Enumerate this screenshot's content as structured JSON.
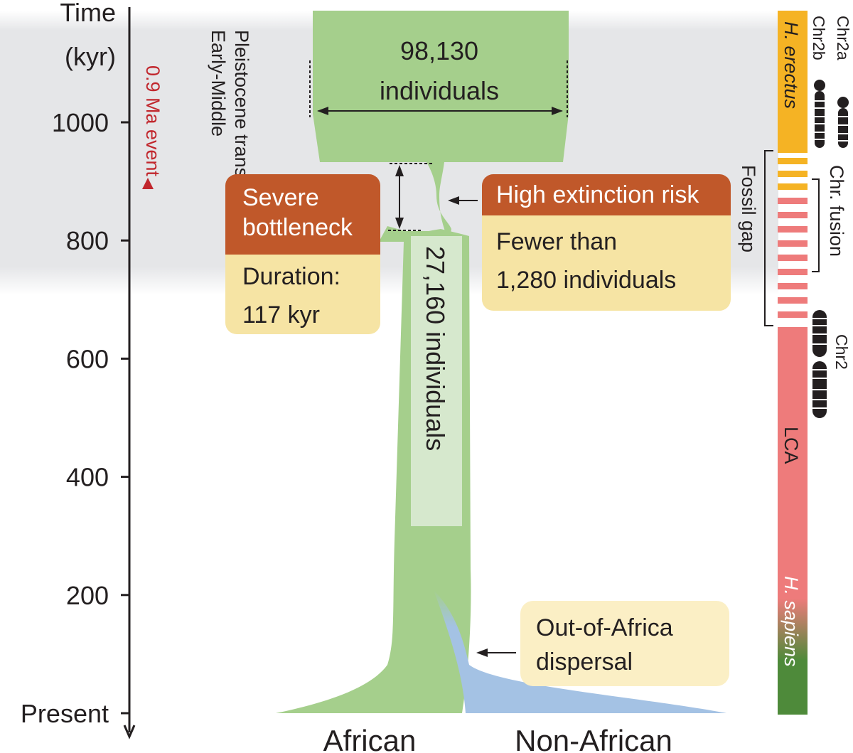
{
  "axis": {
    "title_line1": "Time",
    "title_line2": "(kyr)",
    "ticks": [
      {
        "label": "1000",
        "value": 1000
      },
      {
        "label": "800",
        "value": 800
      },
      {
        "label": "600",
        "value": 600
      },
      {
        "label": "400",
        "value": 400
      },
      {
        "label": "200",
        "value": 200
      },
      {
        "label": "Present",
        "value": 0
      }
    ]
  },
  "transition": {
    "line1": "Early-Middle",
    "line2": "Pleistocene transition"
  },
  "event": {
    "label": "0.9 Ma event",
    "color": "#c1272d"
  },
  "ancestral_population": {
    "count": "98,130",
    "unit": "individuals"
  },
  "post_bottleneck_population": {
    "label": "27,160 individuals"
  },
  "bottleneck_box": {
    "title_line1": "Severe",
    "title_line2": "bottleneck",
    "body_line1": "Duration:",
    "body_line2": "117 kyr"
  },
  "risk_box": {
    "title": "High extinction risk",
    "body_line1": "Fewer than",
    "body_line2": "1,280 individuals"
  },
  "dispersal_box": {
    "line1": "Out-of-Africa",
    "line2": "dispersal"
  },
  "populations": {
    "african": "African",
    "non_african": "Non-African"
  },
  "lineage_bar": {
    "h_erectus": "H. erectus",
    "lca": "LCA",
    "h_sapiens": "H. sapiens",
    "fossil_gap": "Fossil gap",
    "chr_fusion": "Chr. fusion",
    "chr2a": "Chr2a",
    "chr2b": "Chr2b",
    "chr2": "Chr2"
  },
  "colors": {
    "population_green": "#a5cf8c",
    "non_african_blue": "#a4c2e4",
    "box_header": "#c0582a",
    "box_body": "#f6e4a4",
    "erectus_yellow": "#f5b324",
    "lca_pink": "#ee7b7b",
    "sapiens_green": "#4e8a3a",
    "transition_band": "#e5e6e8"
  }
}
